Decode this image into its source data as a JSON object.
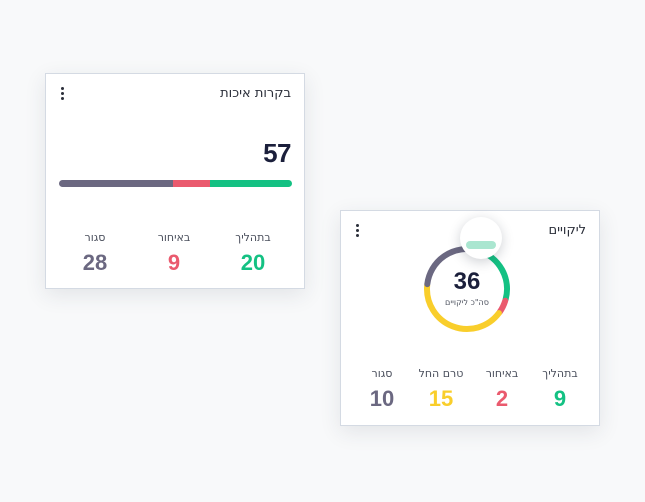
{
  "quality_card": {
    "title": "בקרות איכות",
    "total": "57",
    "bar": {
      "segments": [
        {
          "value": 28,
          "color": "#6b6881"
        },
        {
          "value": 9,
          "color": "#ea5a6e"
        },
        {
          "value": 20,
          "color": "#14c183"
        }
      ]
    },
    "stats": [
      {
        "label": "בתהליך",
        "value": "20",
        "color": "#14c183"
      },
      {
        "label": "באיחור",
        "value": "9",
        "color": "#ea5a6e"
      },
      {
        "label": "סגור",
        "value": "28",
        "color": "#6b6881"
      }
    ]
  },
  "defects_card": {
    "title": "ליקויים",
    "total": "36",
    "total_caption": "סה\"כ ליקויים",
    "donut": {
      "segments": [
        {
          "value": 9,
          "color": "#14c183"
        },
        {
          "value": 2,
          "color": "#ea5a6e"
        },
        {
          "value": 15,
          "color": "#f9ce2b"
        },
        {
          "value": 10,
          "color": "#6b6881"
        }
      ]
    },
    "stats": [
      {
        "label": "בתהליך",
        "value": "9",
        "color": "#14c183"
      },
      {
        "label": "באיחור",
        "value": "2",
        "color": "#ea5a6e"
      },
      {
        "label": "טרם החל",
        "value": "15",
        "color": "#f9ce2b"
      },
      {
        "label": "סגור",
        "value": "10",
        "color": "#6b6881"
      }
    ]
  },
  "icons": {
    "menu": "kebab-menu-icon"
  }
}
